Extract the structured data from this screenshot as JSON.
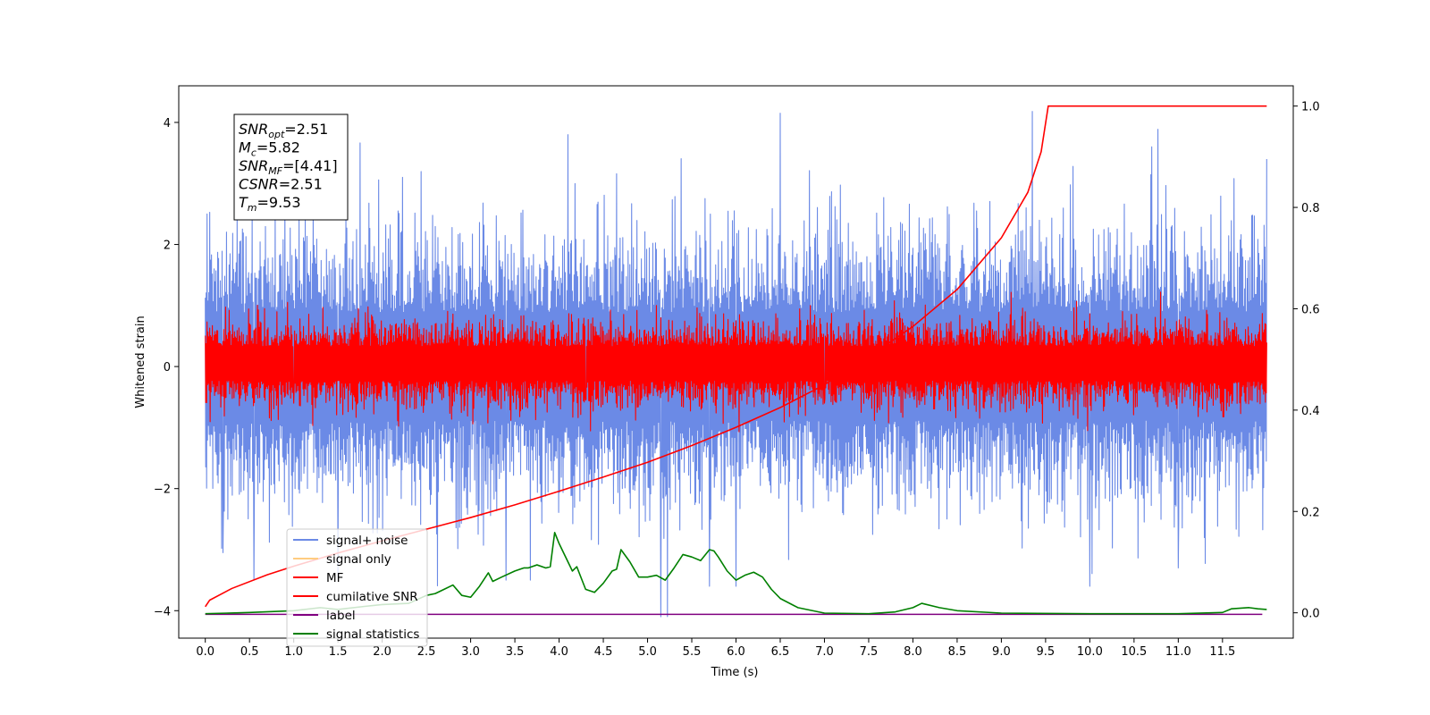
{
  "chart_data": {
    "type": "line",
    "xlabel": "Time (s)",
    "ylabel": "Whitened strain",
    "xlim": [
      -0.3,
      12.3
    ],
    "ylim_left": [
      -4.45,
      4.6
    ],
    "ylim_right": [
      -0.05,
      1.04
    ],
    "x_ticks": [
      0.0,
      0.5,
      1.0,
      1.5,
      2.0,
      2.5,
      3.0,
      3.5,
      4.0,
      4.5,
      5.0,
      5.5,
      6.0,
      6.5,
      7.0,
      7.5,
      8.0,
      8.5,
      9.0,
      9.5,
      10.0,
      10.5,
      11.0,
      11.5
    ],
    "x_tick_labels": [
      "0.0",
      "0.5",
      "1.0",
      "1.5",
      "2.0",
      "2.5",
      "3.0",
      "3.5",
      "4.0",
      "4.5",
      "5.0",
      "5.5",
      "6.0",
      "6.5",
      "7.0",
      "7.5",
      "8.0",
      "8.5",
      "9.0",
      "9.5",
      "10.0",
      "10.5",
      "11.0",
      "11.5"
    ],
    "y_left_ticks": [
      -4,
      -2,
      0,
      2,
      4
    ],
    "y_left_tick_labels": [
      "−4",
      "−2",
      "0",
      "2",
      "4"
    ],
    "y_right_ticks": [
      0.0,
      0.2,
      0.4,
      0.6,
      0.8,
      1.0
    ],
    "y_right_tick_labels": [
      "0.0",
      "0.2",
      "0.4",
      "0.6",
      "0.8",
      "1.0"
    ],
    "legend_position": "lower-left",
    "legend": [
      {
        "label": "signal+ noise",
        "color": "#6b8ae6"
      },
      {
        "label": "signal only",
        "color": "#ffcc80"
      },
      {
        "label": "MF",
        "color": "#ff0000"
      },
      {
        "label": "cumilative SNR",
        "color": "#ff0000"
      },
      {
        "label": "label",
        "color": "#800080"
      },
      {
        "label": "signal statistics",
        "color": "#008000"
      }
    ],
    "annotation": [
      {
        "base": "SNR",
        "sub": "opt",
        "value": "=2.51"
      },
      {
        "base": "M",
        "sub": "c",
        "value": "=5.82"
      },
      {
        "base": "SNR",
        "sub": "MF",
        "value": "=[4.41]"
      },
      {
        "base": "CSNR",
        "sub": "",
        "value": "=2.51"
      },
      {
        "base": "T",
        "sub": "m",
        "value": "=9.53"
      }
    ],
    "series": [
      {
        "name": "signal+ noise",
        "axis": "left",
        "style": "noise",
        "color": "#6b8ae6",
        "x_range": [
          0.0,
          12.0
        ],
        "band": [
          -1.6,
          1.6
        ],
        "peaks": [
          [
            0.02,
            2.5
          ],
          [
            0.9,
            2.9
          ],
          [
            1.5,
            3.2
          ],
          [
            4.1,
            3.8
          ],
          [
            6.5,
            4.15
          ],
          [
            9.35,
            4.18
          ],
          [
            10.7,
            3.6
          ],
          [
            12.0,
            3.4
          ]
        ],
        "troughs": [
          [
            0.2,
            -3.05
          ],
          [
            0.55,
            -3.5
          ],
          [
            1.5,
            -3.45
          ],
          [
            3.4,
            -3.5
          ],
          [
            5.15,
            -4.1
          ],
          [
            5.7,
            -3.6
          ],
          [
            6.0,
            -3.6
          ],
          [
            10.0,
            -3.6
          ],
          [
            11.0,
            -3.3
          ]
        ]
      },
      {
        "name": "MF",
        "axis": "left",
        "style": "noise",
        "color": "#ff0000",
        "x_range": [
          0.0,
          12.0
        ],
        "band": [
          -0.45,
          0.55
        ],
        "peaks": [
          [
            0.5,
            0.7
          ],
          [
            3.1,
            0.72
          ],
          [
            5.1,
            1.0
          ],
          [
            6.0,
            0.75
          ],
          [
            8.0,
            0.73
          ],
          [
            10.4,
            0.75
          ]
        ],
        "troughs": [
          [
            1.0,
            -0.6
          ],
          [
            4.3,
            -0.55
          ],
          [
            7.0,
            -0.6
          ]
        ]
      },
      {
        "name": "cumilative SNR",
        "axis": "right",
        "color": "#ff0000",
        "x": [
          0.0,
          0.05,
          0.3,
          0.7,
          1.0,
          1.5,
          2.0,
          2.5,
          3.0,
          3.5,
          4.0,
          4.5,
          5.0,
          5.5,
          6.0,
          6.5,
          7.0,
          7.5,
          8.0,
          8.5,
          9.0,
          9.3,
          9.45,
          9.53,
          10.0,
          11.0,
          12.0
        ],
        "y": [
          0.012,
          0.025,
          0.048,
          0.075,
          0.092,
          0.118,
          0.142,
          0.165,
          0.188,
          0.213,
          0.24,
          0.268,
          0.297,
          0.33,
          0.366,
          0.405,
          0.45,
          0.505,
          0.565,
          0.638,
          0.74,
          0.83,
          0.91,
          1.0,
          1.0,
          1.0,
          1.0
        ]
      },
      {
        "name": "label",
        "axis": "left",
        "color": "#800080",
        "x": [
          0.0,
          11.95
        ],
        "y": [
          -4.06,
          -4.06
        ]
      },
      {
        "name": "signal statistics",
        "axis": "left",
        "color": "#008000",
        "x": [
          0.0,
          0.5,
          1.0,
          1.3,
          1.5,
          1.8,
          2.0,
          2.3,
          2.5,
          2.6,
          2.7,
          2.8,
          2.9,
          3.0,
          3.1,
          3.2,
          3.25,
          3.35,
          3.5,
          3.6,
          3.65,
          3.75,
          3.85,
          3.9,
          3.95,
          4.0,
          4.1,
          4.15,
          4.2,
          4.3,
          4.4,
          4.5,
          4.6,
          4.65,
          4.7,
          4.8,
          4.9,
          5.0,
          5.1,
          5.2,
          5.3,
          5.4,
          5.5,
          5.6,
          5.7,
          5.75,
          5.8,
          5.9,
          6.0,
          6.1,
          6.2,
          6.3,
          6.4,
          6.5,
          6.7,
          7.0,
          7.5,
          7.8,
          8.0,
          8.1,
          8.3,
          8.5,
          9.0,
          10.0,
          11.0,
          11.5,
          11.6,
          11.8,
          11.9,
          12.0
        ],
        "y": [
          -4.05,
          -4.03,
          -4.0,
          -3.95,
          -3.98,
          -3.93,
          -3.9,
          -3.88,
          -3.75,
          -3.72,
          -3.65,
          -3.58,
          -3.75,
          -3.78,
          -3.6,
          -3.38,
          -3.52,
          -3.45,
          -3.35,
          -3.3,
          -3.3,
          -3.25,
          -3.3,
          -3.28,
          -2.72,
          -2.9,
          -3.2,
          -3.35,
          -3.28,
          -3.65,
          -3.7,
          -3.55,
          -3.35,
          -3.32,
          -3.0,
          -3.2,
          -3.45,
          -3.45,
          -3.42,
          -3.5,
          -3.3,
          -3.08,
          -3.12,
          -3.18,
          -3.0,
          -3.02,
          -3.12,
          -3.35,
          -3.5,
          -3.42,
          -3.37,
          -3.45,
          -3.65,
          -3.8,
          -3.95,
          -4.04,
          -4.05,
          -4.02,
          -3.95,
          -3.88,
          -3.95,
          -4.0,
          -4.04,
          -4.05,
          -4.05,
          -4.03,
          -3.97,
          -3.95,
          -3.97,
          -3.98
        ]
      }
    ]
  }
}
